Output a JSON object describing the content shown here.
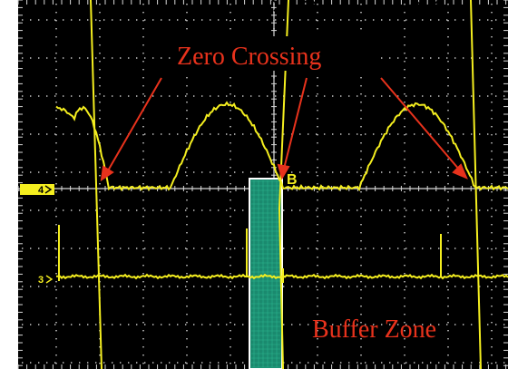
{
  "annotations": {
    "zero_crossing": "Zero Crossing",
    "buffer_zone": "Buffer Zone"
  },
  "channels": {
    "ch4_marker": "4",
    "ch3_marker": "3"
  },
  "cursor_label": "B",
  "colors": {
    "screen_background": "#000000",
    "grid": "#d9d9d9",
    "trace": "#f4ee1f",
    "annotation": "#e8321c",
    "buffer_zone_fill": "#1a8a6e",
    "buffer_zone_border": "#ffffff"
  }
}
